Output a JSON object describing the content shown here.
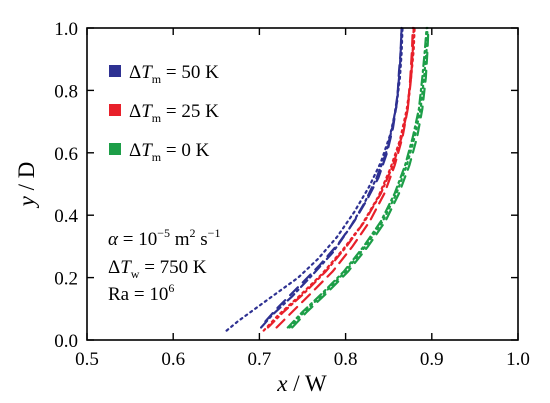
{
  "chart_data": {
    "type": "line",
    "xlabel": {
      "var": "x",
      "sep": " / ",
      "unit": "W"
    },
    "ylabel": {
      "var": "y",
      "sep": " / ",
      "unit": "D"
    },
    "xlim": [
      0.5,
      1.0
    ],
    "ylim": [
      0.0,
      1.0
    ],
    "xticks": [
      "0.5",
      "0.6",
      "0.7",
      "0.8",
      "0.9",
      "1.0"
    ],
    "yticks": [
      "0.0",
      "0.2",
      "0.4",
      "0.6",
      "0.8",
      "1.0"
    ],
    "legend": {
      "placement": "top-left",
      "entries": [
        {
          "symbol": "Δ",
          "var": "T",
          "sub": "m",
          "rest": " = 50 K",
          "color": "#2e3192"
        },
        {
          "symbol": "Δ",
          "var": "T",
          "sub": "m",
          "rest": " = 25 K",
          "color": "#e8202a"
        },
        {
          "symbol": "Δ",
          "var": "T",
          "sub": "m",
          "rest": " = 0 K",
          "color": "#1d9e48"
        }
      ]
    },
    "annotations": {
      "alpha": {
        "sym": "α",
        "eq": " = 10",
        "exp": "−5",
        "u1": " m",
        "u1exp": "2",
        "u2": " s",
        "u2exp": "−1"
      },
      "dtw": {
        "symbol": "Δ",
        "var": "T",
        "sub": "w",
        "rest": " = 750 K"
      },
      "ra": {
        "text": "Ra = 10",
        "exp": "6"
      }
    },
    "series": [
      {
        "group": 0,
        "style": "dashed",
        "color": "#2e3192",
        "points": [
          [
            0.707,
            0.06
          ],
          [
            0.72,
            0.1
          ],
          [
            0.745,
            0.17
          ],
          [
            0.77,
            0.24
          ],
          [
            0.792,
            0.31
          ],
          [
            0.81,
            0.38
          ],
          [
            0.825,
            0.45
          ],
          [
            0.838,
            0.52
          ],
          [
            0.848,
            0.6
          ],
          [
            0.855,
            0.68
          ],
          [
            0.86,
            0.77
          ],
          [
            0.862,
            0.86
          ],
          [
            0.864,
            0.93
          ],
          [
            0.865,
            1.0
          ]
        ]
      },
      {
        "group": 0,
        "style": "dotted",
        "color": "#2e3192",
        "points": [
          [
            0.662,
            0.03
          ],
          [
            0.675,
            0.06
          ],
          [
            0.695,
            0.1
          ],
          [
            0.72,
            0.15
          ],
          [
            0.745,
            0.2
          ],
          [
            0.768,
            0.26
          ],
          [
            0.79,
            0.33
          ],
          [
            0.81,
            0.41
          ],
          [
            0.827,
            0.49
          ],
          [
            0.841,
            0.57
          ],
          [
            0.852,
            0.66
          ],
          [
            0.859,
            0.75
          ],
          [
            0.863,
            0.84
          ],
          [
            0.865,
            0.92
          ],
          [
            0.866,
            1.0
          ]
        ]
      },
      {
        "group": 0,
        "style": "dashdot",
        "color": "#2e3192",
        "points": [
          [
            0.702,
            0.04
          ],
          [
            0.715,
            0.08
          ],
          [
            0.738,
            0.14
          ],
          [
            0.762,
            0.21
          ],
          [
            0.785,
            0.28
          ],
          [
            0.805,
            0.36
          ],
          [
            0.822,
            0.44
          ],
          [
            0.836,
            0.52
          ],
          [
            0.847,
            0.6
          ],
          [
            0.855,
            0.69
          ],
          [
            0.86,
            0.78
          ],
          [
            0.863,
            0.87
          ],
          [
            0.865,
            1.0
          ]
        ]
      },
      {
        "group": 1,
        "style": "dashed",
        "color": "#e8202a",
        "points": [
          [
            0.72,
            0.04
          ],
          [
            0.738,
            0.09
          ],
          [
            0.76,
            0.15
          ],
          [
            0.785,
            0.22
          ],
          [
            0.808,
            0.3
          ],
          [
            0.828,
            0.38
          ],
          [
            0.845,
            0.47
          ],
          [
            0.857,
            0.56
          ],
          [
            0.866,
            0.65
          ],
          [
            0.872,
            0.74
          ],
          [
            0.875,
            0.84
          ],
          [
            0.877,
            0.93
          ],
          [
            0.878,
            1.0
          ]
        ]
      },
      {
        "group": 1,
        "style": "dotted",
        "color": "#e8202a",
        "points": [
          [
            0.705,
            0.03
          ],
          [
            0.722,
            0.08
          ],
          [
            0.746,
            0.14
          ],
          [
            0.772,
            0.21
          ],
          [
            0.797,
            0.29
          ],
          [
            0.819,
            0.37
          ],
          [
            0.838,
            0.46
          ],
          [
            0.852,
            0.55
          ],
          [
            0.863,
            0.64
          ],
          [
            0.871,
            0.74
          ],
          [
            0.876,
            0.84
          ],
          [
            0.879,
            0.93
          ],
          [
            0.88,
            1.0
          ]
        ]
      },
      {
        "group": 1,
        "style": "dashdot",
        "color": "#e8202a",
        "points": [
          [
            0.71,
            0.04
          ],
          [
            0.728,
            0.09
          ],
          [
            0.752,
            0.15
          ],
          [
            0.777,
            0.22
          ],
          [
            0.801,
            0.3
          ],
          [
            0.822,
            0.38
          ],
          [
            0.841,
            0.47
          ],
          [
            0.855,
            0.56
          ],
          [
            0.865,
            0.65
          ],
          [
            0.872,
            0.74
          ],
          [
            0.876,
            0.84
          ],
          [
            0.878,
            0.93
          ],
          [
            0.879,
            1.0
          ]
        ]
      },
      {
        "group": 2,
        "style": "dashed",
        "color": "#1d9e48",
        "points": [
          [
            0.738,
            0.04
          ],
          [
            0.755,
            0.09
          ],
          [
            0.778,
            0.15
          ],
          [
            0.803,
            0.22
          ],
          [
            0.826,
            0.3
          ],
          [
            0.846,
            0.38
          ],
          [
            0.862,
            0.47
          ],
          [
            0.874,
            0.56
          ],
          [
            0.883,
            0.65
          ],
          [
            0.889,
            0.74
          ],
          [
            0.893,
            0.84
          ],
          [
            0.895,
            0.93
          ],
          [
            0.896,
            1.0
          ]
        ]
      },
      {
        "group": 2,
        "style": "dotted",
        "color": "#1d9e48",
        "points": [
          [
            0.735,
            0.04
          ],
          [
            0.752,
            0.09
          ],
          [
            0.775,
            0.15
          ],
          [
            0.8,
            0.22
          ],
          [
            0.823,
            0.3
          ],
          [
            0.843,
            0.38
          ],
          [
            0.859,
            0.47
          ],
          [
            0.871,
            0.56
          ],
          [
            0.88,
            0.65
          ],
          [
            0.887,
            0.74
          ],
          [
            0.891,
            0.84
          ],
          [
            0.894,
            0.93
          ],
          [
            0.895,
            1.0
          ]
        ]
      },
      {
        "group": 2,
        "style": "dashdot",
        "color": "#1d9e48",
        "points": [
          [
            0.733,
            0.04
          ],
          [
            0.75,
            0.09
          ],
          [
            0.773,
            0.15
          ],
          [
            0.798,
            0.22
          ],
          [
            0.821,
            0.3
          ],
          [
            0.841,
            0.38
          ],
          [
            0.857,
            0.47
          ],
          [
            0.869,
            0.56
          ],
          [
            0.878,
            0.65
          ],
          [
            0.885,
            0.74
          ],
          [
            0.889,
            0.84
          ],
          [
            0.892,
            0.93
          ],
          [
            0.894,
            1.0
          ]
        ]
      }
    ]
  }
}
